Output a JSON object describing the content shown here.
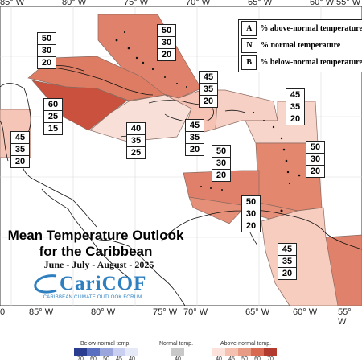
{
  "map": {
    "longitudes_top": [
      "85° W",
      "80° W",
      "75° W",
      "70° W",
      "65° W",
      "60° W",
      "55° W"
    ],
    "longitudes_bottom": [
      "85° W",
      "80° W",
      "75° W",
      "70° W",
      "65° W",
      "60° W",
      "55° W"
    ],
    "longitudes_bottom_left": "0",
    "title_line1": "Mean Temperature Outlook",
    "title_line2": "for the Caribbean",
    "subtitle": "June - July - August - 2025",
    "logo_main": "CariCOF",
    "logo_sub": "CARIBBEAN CLIMATE OUTLOOK FORUM"
  },
  "legend": {
    "rows": [
      {
        "key": "A",
        "text": "% above-normal temperature"
      },
      {
        "key": "N",
        "text": "% normal temperature"
      },
      {
        "key": "B",
        "text": "% below-normal temperature"
      }
    ]
  },
  "regions": [
    {
      "id": "bahamas",
      "values": [
        "50",
        "30",
        "20"
      ],
      "color": "#e0826b"
    },
    {
      "id": "cuba-north",
      "values": [
        "50",
        "30",
        "20"
      ],
      "color": "#de7c63"
    },
    {
      "id": "belize-central-america",
      "values": [
        "60",
        "25",
        "15"
      ],
      "color": "#c9513e"
    },
    {
      "id": "yucatan-belize",
      "values": [
        "45",
        "35",
        "20"
      ],
      "color": "#f5c6b8"
    },
    {
      "id": "jamaica-caymans",
      "values": [
        "40",
        "35",
        "25"
      ],
      "color": "#f8e0d8"
    },
    {
      "id": "hispaniola-west",
      "values": [
        "45",
        "35",
        "20"
      ],
      "color": "#f5c2b3"
    },
    {
      "id": "hispaniola-east",
      "values": [
        "45",
        "35",
        "20"
      ],
      "color": "#f6d0c4"
    },
    {
      "id": "northern-leewards",
      "values": [
        "45",
        "35",
        "20"
      ],
      "color": "#f7d5cb"
    },
    {
      "id": "windwards",
      "values": [
        "50",
        "30",
        "20"
      ],
      "color": "#e3876f"
    },
    {
      "id": "abc-islands",
      "values": [
        "50",
        "30",
        "20"
      ],
      "color": "#e0806a"
    },
    {
      "id": "trinidad-guyana",
      "values": [
        "50",
        "30",
        "20"
      ],
      "color": "#e58f78"
    },
    {
      "id": "venezuela-guianas",
      "values": [
        "45",
        "35",
        "20"
      ],
      "color": "#f6cdbf"
    }
  ],
  "colorbar": {
    "below_title": "Below-normal temp.",
    "normal_title": "Normal temp.",
    "above_title": "Above-normal temp.",
    "below_ticks": [
      "70",
      "60",
      "50",
      "45",
      "40"
    ],
    "normal_ticks": [
      "40"
    ],
    "above_ticks": [
      "40",
      "45",
      "50",
      "60",
      "70"
    ],
    "below_colors": [
      "#2a3d8f",
      "#5b6fc0",
      "#9aa6db",
      "#c8cff0",
      "#e6e9f8"
    ],
    "normal_color": "#c8c8c8",
    "above_colors": [
      "#fbe3dc",
      "#f5c0b0",
      "#e79a84",
      "#d86a52",
      "#b23a2e"
    ]
  }
}
